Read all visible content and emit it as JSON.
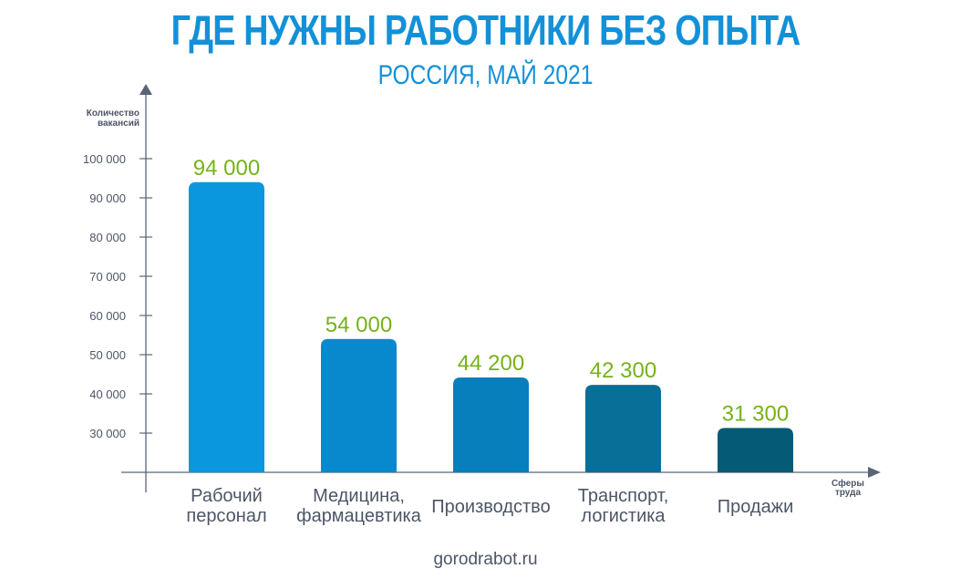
{
  "chart_data": {
    "type": "bar",
    "title": "ГДЕ НУЖНЫ РАБОТНИКИ БЕЗ ОПЫТА",
    "subtitle": "РОССИЯ, МАЙ 2021",
    "ylabel": [
      "Количество",
      "вакансий"
    ],
    "xlabel": [
      "Сферы",
      "труда"
    ],
    "ylim": [
      20000,
      100000
    ],
    "yticks": [
      30000,
      40000,
      50000,
      60000,
      70000,
      80000,
      90000,
      100000
    ],
    "ytick_labels": [
      "30 000",
      "40 000",
      "50 000",
      "60 000",
      "70 000",
      "80 000",
      "90 000",
      "100 000"
    ],
    "categories": [
      [
        "Рабочий",
        "персонал"
      ],
      [
        "Медицина,",
        "фармацевтика"
      ],
      [
        "Производство"
      ],
      [
        "Транспорт,",
        "логистика"
      ],
      [
        "Продажи"
      ]
    ],
    "values": [
      94000,
      54000,
      44200,
      42300,
      31300
    ],
    "value_labels": [
      "94 000",
      "54 000",
      "44 200",
      "42 300",
      "31 300"
    ],
    "bar_colors": [
      "#0a97dd",
      "#0889cd",
      "#077fbd",
      "#086f98",
      "#055a75"
    ],
    "grid": false
  },
  "footer": "gorodrabot.ru"
}
